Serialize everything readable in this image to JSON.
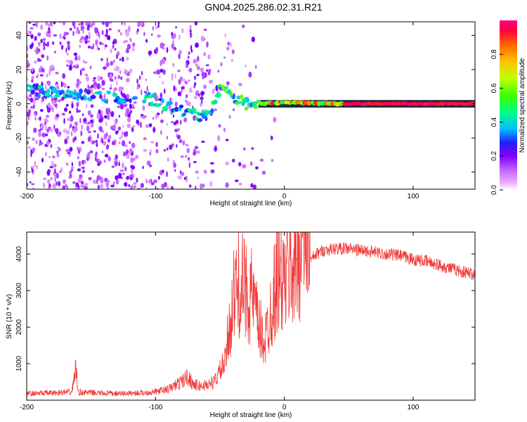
{
  "title": "GN04.2025.286.02.31.R21",
  "chart_data": [
    {
      "type": "heatmap",
      "xlabel": "Height of straight line (km)",
      "ylabel": "Frequency (Hz)",
      "xlim": [
        -200,
        148
      ],
      "ylim": [
        -50,
        48
      ],
      "xticks": [
        -200,
        -100,
        0,
        100
      ],
      "yticks": [
        -40,
        -20,
        0,
        20,
        40
      ],
      "colorbar": {
        "label": "Normalized spectral amplitude",
        "range": [
          0,
          1
        ],
        "ticks": [
          "0.0",
          "0.2",
          "0.4",
          "0.6",
          "0.8"
        ],
        "tick_values": [
          0.0,
          0.2,
          0.4,
          0.6,
          0.8
        ],
        "colors": [
          "#ffffff",
          "#f0b0ff",
          "#c060ff",
          "#8000ff",
          "#2020ff",
          "#00c0ff",
          "#00ff80",
          "#40ff00",
          "#c0ff00",
          "#ffc000",
          "#ff6000",
          "#ff0040",
          "#ff0080"
        ]
      },
      "ridge": [
        {
          "x": -200,
          "f": 8
        },
        {
          "x": -170,
          "f": 6
        },
        {
          "x": -150,
          "f": 4
        },
        {
          "x": -105,
          "f": 3
        },
        {
          "x": -80,
          "f": -4
        },
        {
          "x": -60,
          "f": -8
        },
        {
          "x": -50,
          "f": 9
        },
        {
          "x": -40,
          "f": 4
        },
        {
          "x": -30,
          "f": 0
        },
        {
          "x": -20,
          "f": 0
        },
        {
          "x": 0,
          "f": 1
        },
        {
          "x": 40,
          "f": 0
        },
        {
          "x": 148,
          "f": 0
        }
      ]
    },
    {
      "type": "line",
      "xlabel": "Height of straight line (km)",
      "ylabel": "SNR (10 * v/v)",
      "xlim": [
        -200,
        148
      ],
      "ylim": [
        0,
        4600
      ],
      "xticks": [
        -200,
        -100,
        0,
        100
      ],
      "yticks": [
        1000,
        2000,
        3000,
        4000
      ],
      "series": [
        {
          "name": "SNR",
          "color": "#f03a38",
          "x": [
            -200,
            -180,
            -165,
            -162,
            -160,
            -155,
            -130,
            -110,
            -100,
            -90,
            -80,
            -75,
            -70,
            -65,
            -55,
            -45,
            -40,
            -35,
            -30,
            -25,
            -20,
            -15,
            -10,
            -5,
            0,
            5,
            10,
            15,
            20,
            25,
            30,
            40,
            50,
            60,
            70,
            80,
            90,
            100,
            110,
            120,
            130,
            140,
            148
          ],
          "y": [
            180,
            200,
            220,
            900,
            220,
            210,
            180,
            200,
            230,
            300,
            500,
            650,
            420,
            380,
            480,
            1100,
            2200,
            2600,
            2400,
            2300,
            1600,
            1300,
            2100,
            2800,
            2600,
            2900,
            3100,
            3600,
            3800,
            4000,
            4100,
            4150,
            4150,
            4100,
            4050,
            4000,
            3950,
            3850,
            3800,
            3700,
            3600,
            3500,
            3450
          ]
        }
      ]
    }
  ]
}
